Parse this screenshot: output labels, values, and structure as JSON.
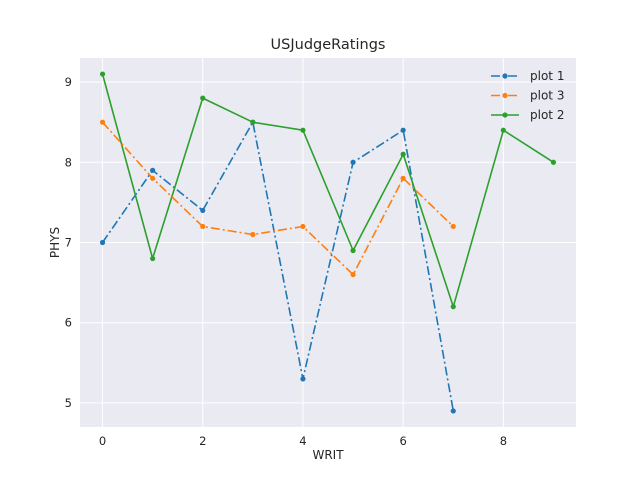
{
  "chart_data": {
    "type": "line",
    "title": "USJudgeRatings",
    "xlabel": "WRIT",
    "ylabel": "PHYS",
    "xlim": [
      -0.45,
      9.45
    ],
    "ylim": [
      4.7,
      9.3
    ],
    "xticks": [
      0,
      2,
      4,
      6,
      8
    ],
    "yticks": [
      5,
      6,
      7,
      8,
      9
    ],
    "grid": true,
    "legend_position": "top-right",
    "legend_order": [
      0,
      2,
      1
    ],
    "series": [
      {
        "name": "plot 1",
        "color": "#1f77b4",
        "linestyle": "dashdot",
        "marker": "circle",
        "x": [
          0,
          1,
          2,
          3,
          4,
          5,
          6,
          7
        ],
        "y": [
          7.0,
          7.9,
          7.4,
          8.5,
          5.3,
          8.0,
          8.4,
          4.9
        ]
      },
      {
        "name": "plot 2",
        "color": "#2ca02c",
        "linestyle": "solid",
        "marker": "circle",
        "x": [
          0,
          1,
          2,
          3,
          4,
          5,
          6,
          7,
          8,
          9
        ],
        "y": [
          9.1,
          6.8,
          8.8,
          8.5,
          8.4,
          6.9,
          8.1,
          6.2,
          8.4,
          8.0
        ]
      },
      {
        "name": "plot 3",
        "color": "#ff7f0e",
        "linestyle": "dashdot",
        "marker": "circle",
        "x": [
          0,
          1,
          2,
          3,
          4,
          5,
          6,
          7
        ],
        "y": [
          8.5,
          7.8,
          7.2,
          7.1,
          7.2,
          6.6,
          7.8,
          7.2
        ]
      }
    ]
  }
}
